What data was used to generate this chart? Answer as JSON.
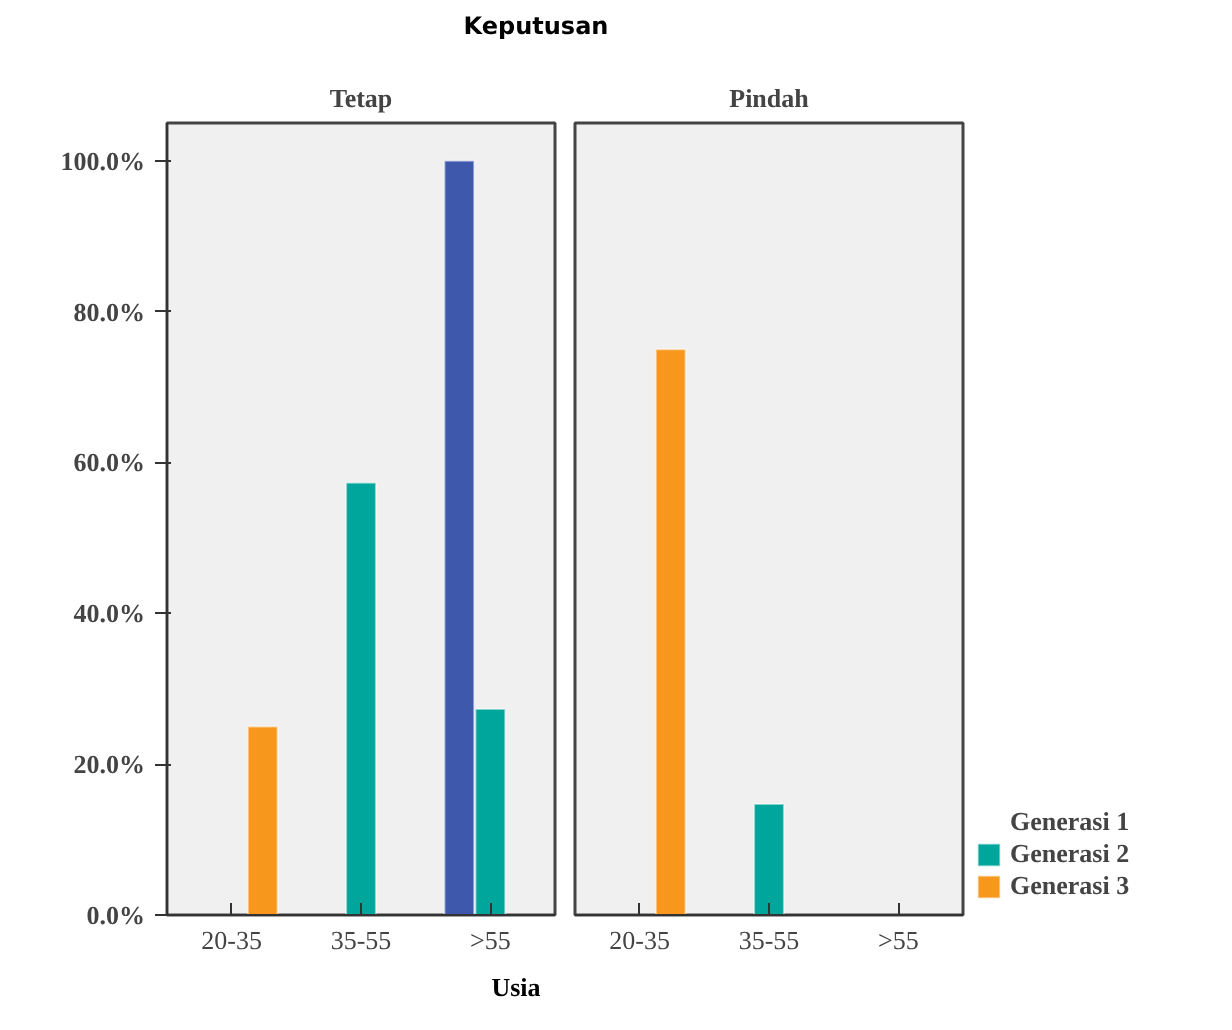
{
  "chart_data": [
    {
      "type": "bar",
      "title": "Keputusan",
      "subtitle": "Tetap",
      "xlabel": "Usia",
      "categories": [
        "20-35",
        "35-55",
        ">55"
      ],
      "series": [
        {
          "name": "Generasi 1",
          "color": "#3e58ac",
          "values": [
            null,
            null,
            100
          ]
        },
        {
          "name": "Generasi 2",
          "color": "#00a59b",
          "values": [
            null,
            57.3,
            27.3
          ]
        },
        {
          "name": "Generasi 3",
          "color": "#f7981d",
          "values": [
            25,
            null,
            null
          ]
        }
      ],
      "ylim": [
        0,
        105
      ],
      "yticks": [
        {
          "value": 0,
          "label": "0.0%"
        },
        {
          "value": 20,
          "label": "20.0%"
        },
        {
          "value": 40,
          "label": "40.0%"
        },
        {
          "value": 60,
          "label": "60.0%"
        },
        {
          "value": 80,
          "label": "80.0%"
        },
        {
          "value": 100,
          "label": "100.0%"
        }
      ],
      "grid": false,
      "legend": "right"
    },
    {
      "type": "bar",
      "subtitle": "Pindah",
      "categories": [
        "20-35",
        "35-55",
        ">55"
      ],
      "series": [
        {
          "color": "#3e58ac",
          "values": [
            null,
            null,
            null
          ]
        },
        {
          "color": "#00a59b",
          "values": [
            null,
            14.7,
            null
          ]
        },
        {
          "color": "#f7981d",
          "values": [
            75,
            null,
            null
          ]
        }
      ],
      "ylim": [
        0,
        105
      ],
      "tick_labels": "x",
      "grid": false
    }
  ]
}
